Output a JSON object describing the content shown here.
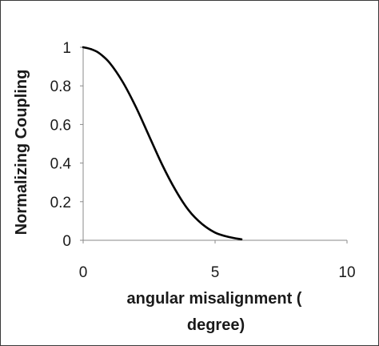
{
  "chart_data": {
    "type": "line",
    "title": "",
    "xlabel_lines": [
      "angular misalignment (",
      "degree)"
    ],
    "ylabel": "Normalizing Coupling",
    "xlim": [
      0,
      10
    ],
    "ylim": [
      0,
      1
    ],
    "x_ticks": [
      0,
      5,
      10
    ],
    "y_ticks": [
      0,
      0.2,
      0.4,
      0.6,
      0.8,
      1
    ],
    "x_tick_labels": [
      "0",
      "5",
      "10"
    ],
    "y_tick_labels": [
      "0",
      "0.2",
      "0.4",
      "0.6",
      "0.8",
      "1"
    ],
    "grid": false,
    "legend": "none",
    "line_color": "#000000",
    "series": [
      {
        "x": [
          0,
          0.3,
          0.6,
          1.0,
          1.5,
          2.0,
          2.5,
          3.0,
          3.5,
          4.0,
          4.5,
          5.0,
          5.5,
          6.0
        ],
        "y": [
          1.0,
          0.99,
          0.97,
          0.92,
          0.82,
          0.69,
          0.54,
          0.39,
          0.26,
          0.155,
          0.085,
          0.04,
          0.018,
          0.005
        ]
      }
    ]
  }
}
